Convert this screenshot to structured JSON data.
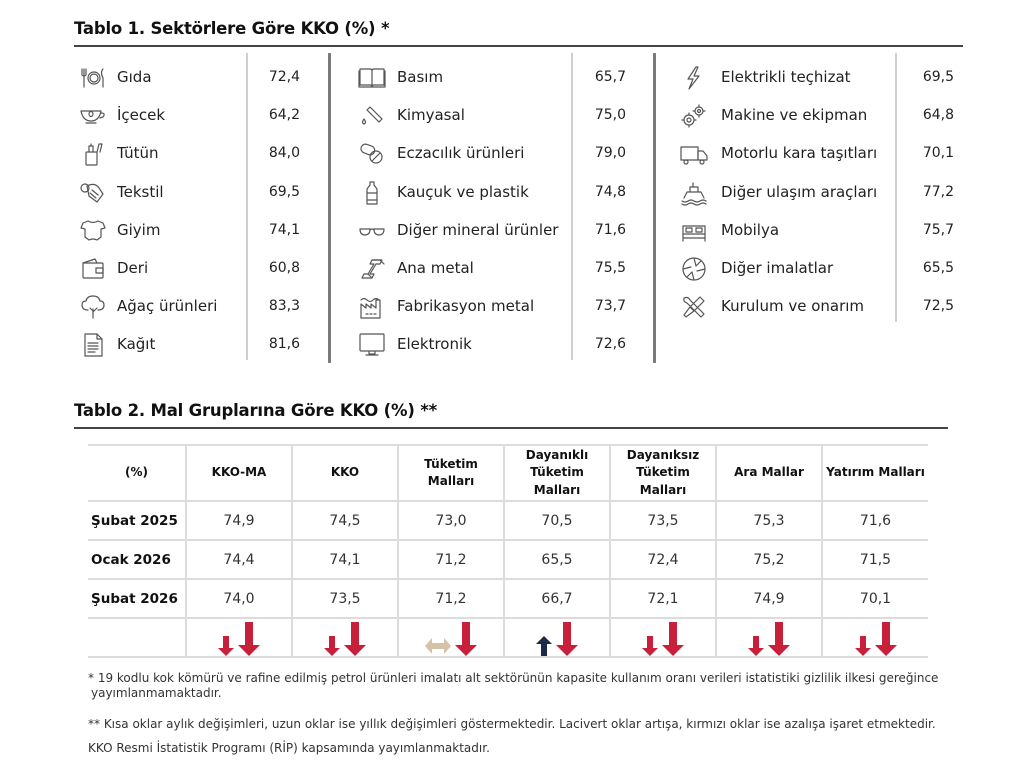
{
  "table1": {
    "title": "Tablo 1. Sektörlere Göre KKO (%) *",
    "groups": [
      [
        {
          "icon": "plate-cutlery-icon",
          "label": "Gıda",
          "value": "72,4"
        },
        {
          "icon": "teacup-icon",
          "label": "İçecek",
          "value": "64,2"
        },
        {
          "icon": "cigarette-lighter-icon",
          "label": "Tütün",
          "value": "84,0"
        },
        {
          "icon": "yarn-spool-icon",
          "label": "Tekstil",
          "value": "69,5"
        },
        {
          "icon": "onesie-icon",
          "label": "Giyim",
          "value": "74,1"
        },
        {
          "icon": "wallet-icon",
          "label": "Deri",
          "value": "60,8"
        },
        {
          "icon": "tree-icon",
          "label": "Ağaç ürünleri",
          "value": "83,3"
        },
        {
          "icon": "document-icon",
          "label": "Kağıt",
          "value": "81,6"
        }
      ],
      [
        {
          "icon": "open-book-icon",
          "label": "Basım",
          "value": "65,7"
        },
        {
          "icon": "test-tube-icon",
          "label": "Kimyasal",
          "value": "75,0"
        },
        {
          "icon": "pills-icon",
          "label": "Eczacılık ürünleri",
          "value": "79,0"
        },
        {
          "icon": "bottle-icon",
          "label": "Kauçuk ve plastik",
          "value": "74,8"
        },
        {
          "icon": "glasses-icon",
          "label": "Diğer mineral ürünler",
          "value": "71,6"
        },
        {
          "icon": "steel-beam-icon",
          "label": "Ana metal",
          "value": "75,5"
        },
        {
          "icon": "factory-icon",
          "label": "Fabrikasyon metal",
          "value": "73,7"
        },
        {
          "icon": "monitor-icon",
          "label": "Elektronik",
          "value": "72,6"
        }
      ],
      [
        {
          "icon": "lightning-bolt-icon",
          "label": "Elektrikli teçhizat",
          "value": "69,5"
        },
        {
          "icon": "gears-icon",
          "label": "Makine ve ekipman",
          "value": "64,8"
        },
        {
          "icon": "truck-icon",
          "label": "Motorlu kara taşıtları",
          "value": "70,1"
        },
        {
          "icon": "ship-icon",
          "label": "Diğer ulaşım araçları",
          "value": "77,2"
        },
        {
          "icon": "bed-icon",
          "label": "Mobilya",
          "value": "75,7"
        },
        {
          "icon": "aperture-icon",
          "label": "Diğer imalatlar",
          "value": "65,5"
        },
        {
          "icon": "wrench-screwdriver-icon",
          "label": "Kurulum ve onarım",
          "value": "72,5"
        }
      ]
    ]
  },
  "table2": {
    "title": "Tablo 2. Mal Gruplarına Göre KKO (%) **",
    "headers": [
      "(%)",
      "KKO-MA",
      "KKO",
      "Tüketim Malları",
      "Dayanıklı Tüketim Malları",
      "Dayanıksız Tüketim Malları",
      "Ara Mallar",
      "Yatırım Malları"
    ],
    "rows": [
      {
        "label": "Şubat 2025",
        "values": [
          "74,9",
          "74,5",
          "73,0",
          "70,5",
          "73,5",
          "75,3",
          "71,6"
        ]
      },
      {
        "label": "Ocak 2026",
        "values": [
          "74,4",
          "74,1",
          "71,2",
          "65,5",
          "72,4",
          "75,2",
          "71,5"
        ]
      },
      {
        "label": "Şubat 2026",
        "values": [
          "74,0",
          "73,5",
          "71,2",
          "66,7",
          "72,1",
          "74,9",
          "70,1"
        ]
      }
    ],
    "arrows": [
      {
        "monthly": "down",
        "annual": "down"
      },
      {
        "monthly": "down",
        "annual": "down"
      },
      {
        "monthly": "flat",
        "annual": "down"
      },
      {
        "monthly": "up",
        "annual": "down"
      },
      {
        "monthly": "down",
        "annual": "down"
      },
      {
        "monthly": "down",
        "annual": "down"
      },
      {
        "monthly": "down",
        "annual": "down"
      }
    ],
    "colors": {
      "down": "#c8203a",
      "up": "#1c2a45",
      "flat": "#d6c2a6"
    }
  },
  "notes": {
    "note1_line1": "* 19 kodlu kok kömürü ve rafine edilmiş petrol ürünleri imalatı alt sektörünün kapasite kullanım oranı verileri istatistiki gizlilik ilkesi gereğince",
    "note1_line2": "yayımlanmamaktadır.",
    "note2": "** Kısa oklar aylık değişimleri, uzun oklar ise yıllık değişimleri göstermektedir. Lacivert oklar artışa, kırmızı oklar ise azalışa işaret etmektedir.",
    "note3": "KKO Resmi İstatistik Programı (RİP) kapsamında yayımlanmaktadır."
  }
}
